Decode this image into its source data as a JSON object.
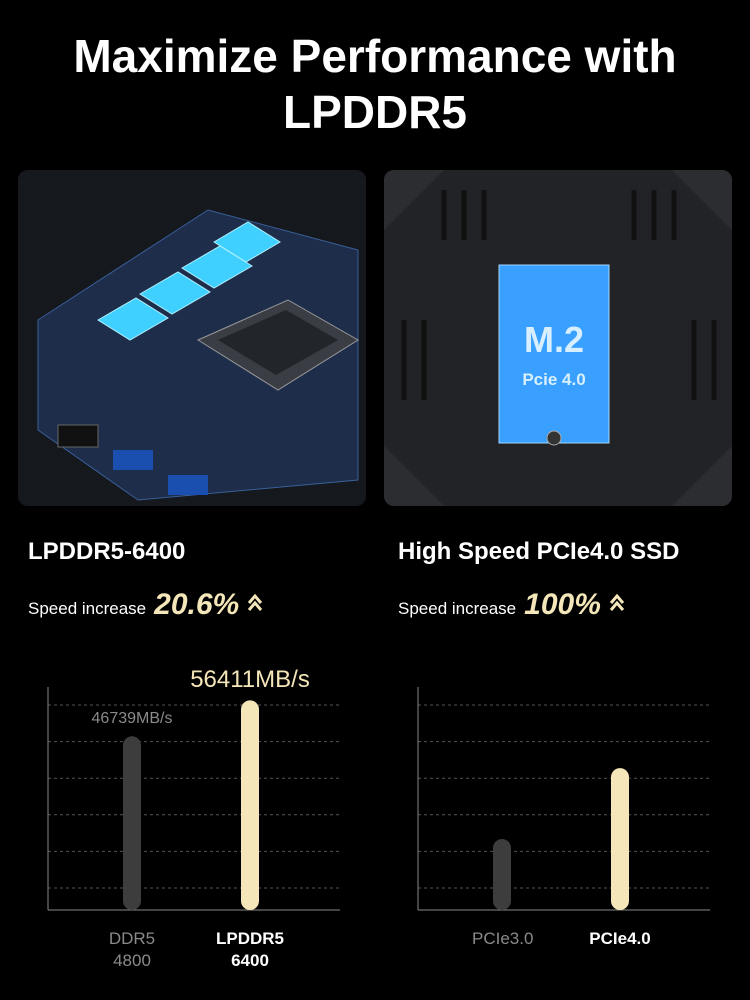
{
  "header": {
    "title": "Maximize Performance with LPDDR5"
  },
  "images": [
    {
      "label": "M.2",
      "sublabel": "Pcie 4.0"
    }
  ],
  "chart_data": [
    {
      "type": "bar",
      "title": "LPDDR5-6400",
      "subtitle": "Speed increase",
      "annotation": "20.6%",
      "categories": [
        "DDR5 4800",
        "LPDDR5 6400"
      ],
      "values": [
        46739,
        56411
      ],
      "value_labels": [
        "46739MB/s",
        "56411MB/s"
      ],
      "colors": [
        "#3d3d3d",
        "#f4e6b9"
      ],
      "ylim": [
        0,
        60000
      ],
      "grid": true
    },
    {
      "type": "bar",
      "title": "High Speed PCIe4.0 SSD",
      "subtitle": "Speed increase",
      "annotation": "100%",
      "categories": [
        "PCIe3.0",
        "PCIe4.0"
      ],
      "values": [
        3500,
        7000
      ],
      "colors": [
        "#3d3d3d",
        "#f4e6b9"
      ],
      "ylim": [
        0,
        11000
      ],
      "grid": true
    }
  ]
}
